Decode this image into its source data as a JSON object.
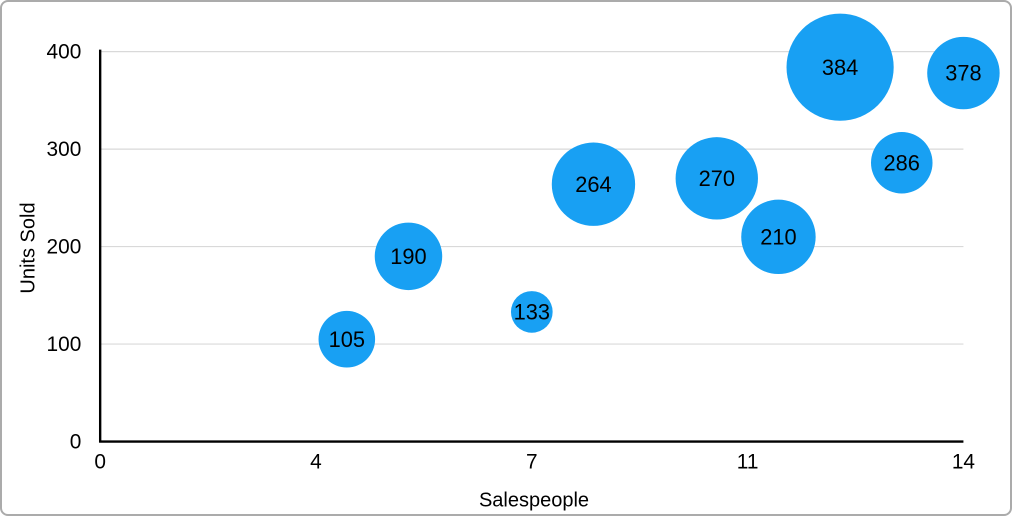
{
  "figure": {
    "background": "#ffffff",
    "border_color": "#ababab"
  },
  "chart_data": {
    "type": "scatter",
    "subtype": "bubble",
    "title": "",
    "xlabel": "Salespeople",
    "ylabel": "Units Sold",
    "xlim": [
      0,
      14
    ],
    "ylim": [
      0,
      400
    ],
    "grid": "horizontal",
    "legend": "none",
    "x_ticks": [
      {
        "label": "0",
        "position": 0
      },
      {
        "label": "4",
        "position": 3.5
      },
      {
        "label": "7",
        "position": 7
      },
      {
        "label": "11",
        "position": 10.5
      },
      {
        "label": "14",
        "position": 14
      }
    ],
    "y_ticks": [
      {
        "label": "0",
        "position": 0
      },
      {
        "label": "100",
        "position": 100
      },
      {
        "label": "200",
        "position": 200
      },
      {
        "label": "300",
        "position": 300
      },
      {
        "label": "400",
        "position": 400
      }
    ],
    "series": [
      {
        "name": "Units Sold",
        "color": "#18a0f3",
        "points": [
          {
            "x": 4,
            "y": 105,
            "label": "105",
            "radius_px": 28.5
          },
          {
            "x": 5,
            "y": 190,
            "label": "190",
            "radius_px": 34
          },
          {
            "x": 7,
            "y": 133,
            "label": "133",
            "radius_px": 21
          },
          {
            "x": 8,
            "y": 264,
            "label": "264",
            "radius_px": 42
          },
          {
            "x": 10,
            "y": 270,
            "label": "270",
            "radius_px": 41.5
          },
          {
            "x": 11,
            "y": 210,
            "label": "210",
            "radius_px": 37.5
          },
          {
            "x": 12,
            "y": 384,
            "label": "384",
            "radius_px": 54
          },
          {
            "x": 13,
            "y": 286,
            "label": "286",
            "radius_px": 31
          },
          {
            "x": 14,
            "y": 378,
            "label": "378",
            "radius_px": 36.5
          }
        ]
      }
    ],
    "colors": {
      "bubble": "#18a0f3",
      "gridline": "#d9d9d9",
      "axis": "#000000",
      "text": "#000000"
    }
  }
}
